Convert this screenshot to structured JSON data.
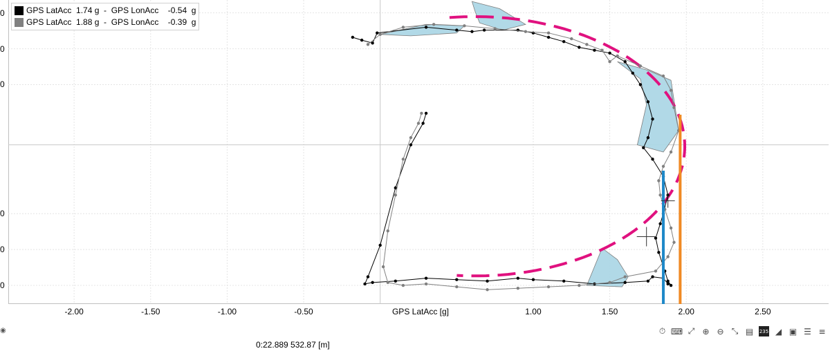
{
  "legend": [
    {
      "label": "GPS LatAcc  1.74 g  -  GPS LonAcc    -0.54  g",
      "color": "#000000"
    },
    {
      "label": "GPS LatAcc  1.88 g  -  GPS LonAcc    -0.39  g",
      "color": "#808080"
    }
  ],
  "readout": "0:22.889  532.87 [m]",
  "icons": [
    "timer-icon",
    "keyboard-icon",
    "zoom-fit-icon",
    "zoom-in-icon",
    "zoom-out-icon",
    "zoom-reset-icon",
    "layout-icon",
    "number-badge-icon",
    "triangle-icon",
    "image-icon",
    "panel-icon",
    "list-icon"
  ],
  "badge_text": "235",
  "colors": {
    "fill": "#add8e6",
    "dashed": "#e0117f",
    "blue_line": "#1e88c8",
    "orange_line": "#f08a24"
  },
  "chart_data": {
    "type": "scatter",
    "xlabel": "GPS LatAcc [g]",
    "x_ticks": [
      -2.0,
      -1.5,
      -1.0,
      -0.5,
      1.0,
      1.5,
      2.0,
      2.5
    ],
    "x_tick_labels": [
      "-2.00",
      "-1.50",
      "-1.00",
      "-0.50",
      "1.00",
      "1.50",
      "2.00",
      "2.50"
    ],
    "xlim": [
      -2.43,
      2.93
    ],
    "ylim": [
      -1.11,
      1.01
    ],
    "y_tick_labels": [
      "0",
      "0",
      "0",
      "0",
      "0",
      "0"
    ],
    "y_ticks": [
      0.92,
      0.67,
      0.42,
      -0.48,
      -0.73,
      -0.98
    ],
    "grid": true,
    "vertical_lines": [
      {
        "x": 1.85,
        "y_top": -0.18,
        "color": "#1e88c8"
      },
      {
        "x": 1.96,
        "y_top": 0.21,
        "color": "#f08a24"
      }
    ],
    "dashed_circle_fit": {
      "cx": 0.62,
      "cy": -0.01,
      "r": 1.37,
      "from_deg": 100,
      "to_deg": 265
    },
    "series": [
      {
        "name": "GPS LatAcc  1.74 g  -  GPS LonAcc    -0.54  g",
        "color": "#000000",
        "x": [
          -0.18,
          -0.12,
          -0.05,
          -0.02,
          0.3,
          0.5,
          0.6,
          0.68,
          0.9,
          1.0,
          1.1,
          1.2,
          1.3,
          1.4,
          1.5,
          1.6,
          1.65,
          1.7,
          1.75,
          1.78,
          1.75,
          1.72,
          1.78,
          1.85,
          1.88,
          1.85,
          1.83,
          1.8,
          1.82,
          1.86,
          1.88,
          1.9,
          1.88,
          1.85,
          1.78,
          1.75,
          1.6,
          1.4,
          1.2,
          1.0,
          0.9,
          0.7,
          0.5,
          0.3,
          0.1,
          -0.05,
          -0.1,
          -0.08,
          0.0,
          0.1,
          0.2,
          0.28,
          0.3
        ],
        "y": [
          0.75,
          0.73,
          0.71,
          0.78,
          0.82,
          0.8,
          0.79,
          0.8,
          0.8,
          0.78,
          0.75,
          0.72,
          0.68,
          0.66,
          0.64,
          0.58,
          0.5,
          0.42,
          0.3,
          0.18,
          0.05,
          -0.02,
          -0.1,
          -0.22,
          -0.35,
          -0.48,
          -0.55,
          -0.65,
          -0.75,
          -0.88,
          -0.95,
          -0.98,
          -0.97,
          -0.93,
          -0.92,
          -0.95,
          -0.96,
          -0.97,
          -0.95,
          -0.94,
          -0.93,
          -0.95,
          -0.94,
          -0.93,
          -0.95,
          -0.96,
          -0.97,
          -0.92,
          -0.7,
          -0.3,
          0.0,
          0.15,
          0.22
        ]
      },
      {
        "name": "GPS LatAcc  1.88 g  -  GPS LonAcc    -0.39  g",
        "color": "#808080",
        "x": [
          -0.08,
          0.0,
          0.15,
          0.35,
          0.55,
          0.75,
          0.95,
          1.1,
          1.25,
          1.35,
          1.45,
          1.5,
          1.55,
          1.7,
          1.85,
          1.9,
          1.92,
          1.95,
          1.9,
          1.85,
          1.82,
          1.83,
          1.86,
          1.9,
          1.92,
          1.88,
          1.8,
          1.6,
          1.5,
          1.3,
          1.1,
          0.9,
          0.7,
          0.5,
          0.3,
          0.15,
          0.05,
          0.02,
          0.05,
          0.1,
          0.15,
          0.2,
          0.25,
          0.27
        ],
        "y": [
          0.7,
          0.77,
          0.82,
          0.84,
          0.83,
          0.81,
          0.79,
          0.78,
          0.74,
          0.7,
          0.66,
          0.58,
          0.62,
          0.55,
          0.48,
          0.38,
          0.26,
          0.1,
          -0.05,
          -0.15,
          -0.25,
          -0.35,
          -0.45,
          -0.58,
          -0.68,
          -0.78,
          -0.88,
          -0.92,
          -0.96,
          -0.98,
          -0.99,
          -1.0,
          -1.01,
          -0.99,
          -0.97,
          -0.98,
          -0.96,
          -0.85,
          -0.6,
          -0.35,
          -0.1,
          0.05,
          0.15,
          0.22
        ]
      }
    ]
  }
}
